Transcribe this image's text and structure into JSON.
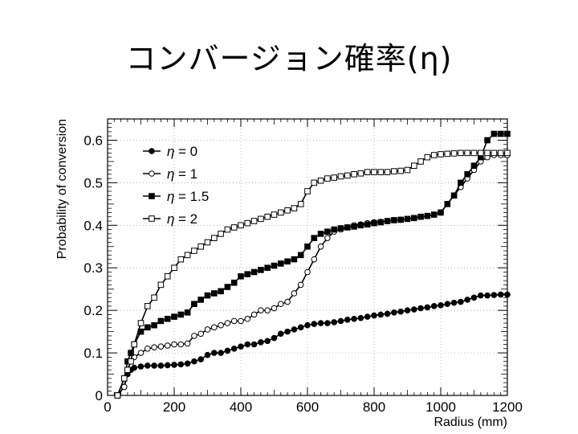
{
  "slide": {
    "title": "コンバージョン確率(η)"
  },
  "chart_data": {
    "type": "line",
    "title": "",
    "xlabel": "Radius (mm)",
    "ylabel": "Probability of conversion",
    "xlim": [
      0,
      1200
    ],
    "ylim": [
      0,
      0.65
    ],
    "x_ticks": [
      0,
      200,
      400,
      600,
      800,
      1000,
      1200
    ],
    "y_ticks": [
      0,
      0.1,
      0.2,
      0.3,
      0.4,
      0.5,
      0.6
    ],
    "x_tick_labels": [
      "0",
      "200",
      "400",
      "600",
      "800",
      "1000",
      "1200"
    ],
    "y_tick_labels": [
      "0",
      "0.1",
      "0.2",
      "0.3",
      "0.4",
      "0.5",
      "0.6"
    ],
    "legend_position": "top-left",
    "series": [
      {
        "name": "η = 0",
        "label_prefix": "η",
        "label_value": "= 0",
        "marker": "filled-circle",
        "x": [
          30,
          50,
          60,
          70,
          80,
          100,
          120,
          140,
          160,
          180,
          200,
          220,
          240,
          260,
          280,
          300,
          320,
          340,
          360,
          380,
          400,
          420,
          440,
          460,
          480,
          500,
          520,
          540,
          560,
          580,
          600,
          620,
          640,
          660,
          680,
          700,
          720,
          740,
          760,
          780,
          800,
          820,
          840,
          860,
          880,
          900,
          920,
          940,
          960,
          980,
          1000,
          1020,
          1040,
          1060,
          1080,
          1100,
          1120,
          1140,
          1160,
          1180,
          1200
        ],
        "y": [
          0.0,
          0.02,
          0.05,
          0.06,
          0.065,
          0.068,
          0.07,
          0.07,
          0.07,
          0.071,
          0.072,
          0.073,
          0.075,
          0.08,
          0.085,
          0.095,
          0.1,
          0.1,
          0.105,
          0.11,
          0.115,
          0.12,
          0.12,
          0.125,
          0.128,
          0.135,
          0.145,
          0.15,
          0.155,
          0.16,
          0.165,
          0.168,
          0.17,
          0.17,
          0.172,
          0.175,
          0.178,
          0.18,
          0.182,
          0.185,
          0.188,
          0.19,
          0.192,
          0.195,
          0.197,
          0.2,
          0.202,
          0.205,
          0.207,
          0.21,
          0.212,
          0.215,
          0.218,
          0.22,
          0.225,
          0.23,
          0.235,
          0.235,
          0.236,
          0.237,
          0.237
        ]
      },
      {
        "name": "η = 1",
        "label_prefix": "η",
        "label_value": "= 1",
        "marker": "open-circle",
        "x": [
          30,
          50,
          60,
          70,
          80,
          100,
          120,
          140,
          160,
          180,
          200,
          220,
          240,
          260,
          280,
          300,
          320,
          340,
          360,
          380,
          400,
          420,
          440,
          460,
          480,
          500,
          520,
          540,
          560,
          580,
          600,
          620,
          640,
          660,
          680,
          700,
          720,
          740,
          760,
          780,
          800,
          820,
          840,
          860,
          880,
          900,
          920,
          940,
          960,
          980,
          1000,
          1020,
          1040,
          1060,
          1080,
          1100,
          1120,
          1140,
          1160,
          1180,
          1200
        ],
        "y": [
          0.0,
          0.02,
          0.06,
          0.08,
          0.09,
          0.1,
          0.11,
          0.113,
          0.115,
          0.117,
          0.12,
          0.12,
          0.122,
          0.14,
          0.145,
          0.155,
          0.16,
          0.165,
          0.17,
          0.175,
          0.175,
          0.18,
          0.19,
          0.2,
          0.2,
          0.205,
          0.215,
          0.22,
          0.24,
          0.26,
          0.29,
          0.32,
          0.35,
          0.37,
          0.385,
          0.39,
          0.395,
          0.4,
          0.402,
          0.405,
          0.407,
          0.408,
          0.41,
          0.412,
          0.413,
          0.415,
          0.417,
          0.42,
          0.422,
          0.425,
          0.43,
          0.45,
          0.47,
          0.49,
          0.51,
          0.53,
          0.55,
          0.56,
          0.565,
          0.565,
          0.565
        ]
      },
      {
        "name": "η = 1.5",
        "label_prefix": "η",
        "label_value": "= 1.5",
        "marker": "filled-square",
        "x": [
          30,
          50,
          60,
          70,
          80,
          100,
          120,
          140,
          160,
          180,
          200,
          220,
          240,
          260,
          280,
          300,
          320,
          340,
          360,
          380,
          400,
          420,
          440,
          460,
          480,
          500,
          520,
          540,
          560,
          580,
          600,
          620,
          640,
          660,
          680,
          700,
          720,
          740,
          760,
          780,
          800,
          820,
          840,
          860,
          880,
          900,
          920,
          940,
          960,
          980,
          1000,
          1020,
          1040,
          1060,
          1080,
          1100,
          1120,
          1140,
          1160,
          1180,
          1200
        ],
        "y": [
          0.0,
          0.04,
          0.08,
          0.1,
          0.12,
          0.15,
          0.16,
          0.165,
          0.175,
          0.18,
          0.185,
          0.19,
          0.195,
          0.215,
          0.225,
          0.235,
          0.24,
          0.245,
          0.255,
          0.265,
          0.28,
          0.285,
          0.29,
          0.295,
          0.3,
          0.305,
          0.31,
          0.315,
          0.32,
          0.33,
          0.35,
          0.37,
          0.38,
          0.385,
          0.39,
          0.393,
          0.395,
          0.397,
          0.4,
          0.402,
          0.405,
          0.407,
          0.41,
          0.412,
          0.413,
          0.415,
          0.417,
          0.42,
          0.422,
          0.425,
          0.43,
          0.45,
          0.47,
          0.5,
          0.52,
          0.54,
          0.56,
          0.6,
          0.615,
          0.615,
          0.615
        ]
      },
      {
        "name": "η = 2",
        "label_prefix": "η",
        "label_value": "= 2",
        "marker": "open-square",
        "x": [
          30,
          50,
          60,
          70,
          80,
          100,
          120,
          140,
          160,
          180,
          200,
          220,
          240,
          260,
          280,
          300,
          320,
          340,
          360,
          380,
          400,
          420,
          440,
          460,
          480,
          500,
          520,
          540,
          560,
          580,
          600,
          620,
          640,
          660,
          680,
          700,
          720,
          740,
          760,
          780,
          800,
          820,
          840,
          860,
          880,
          900,
          920,
          940,
          960,
          980,
          1000,
          1020,
          1040,
          1060,
          1080,
          1100,
          1120,
          1140,
          1160,
          1180,
          1200
        ],
        "y": [
          0.0,
          0.04,
          0.06,
          0.08,
          0.12,
          0.17,
          0.21,
          0.23,
          0.26,
          0.28,
          0.3,
          0.32,
          0.33,
          0.34,
          0.35,
          0.36,
          0.37,
          0.38,
          0.39,
          0.395,
          0.4,
          0.405,
          0.41,
          0.415,
          0.42,
          0.425,
          0.43,
          0.435,
          0.44,
          0.45,
          0.48,
          0.5,
          0.505,
          0.51,
          0.512,
          0.515,
          0.517,
          0.52,
          0.522,
          0.525,
          0.525,
          0.525,
          0.525,
          0.527,
          0.528,
          0.53,
          0.54,
          0.55,
          0.56,
          0.565,
          0.567,
          0.568,
          0.569,
          0.57,
          0.57,
          0.57,
          0.57,
          0.57,
          0.57,
          0.57,
          0.57
        ]
      }
    ]
  }
}
